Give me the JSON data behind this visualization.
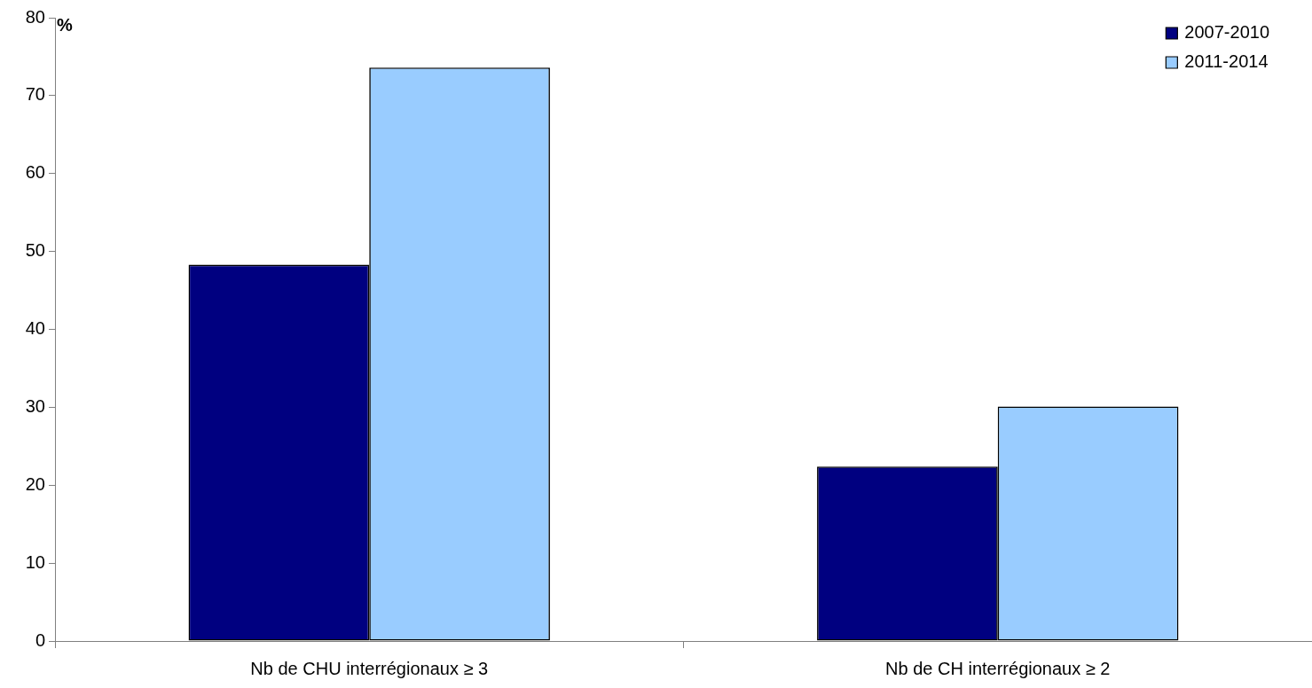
{
  "chart_data": {
    "type": "bar",
    "ylabel": "%",
    "categories": [
      "Nb de CHU interrégionaux ≥ 3",
      "Nb de CH interrégionaux ≥ 2"
    ],
    "series": [
      {
        "name": "2007-2010",
        "color": "#000080",
        "values": [
          48.3,
          22.4
        ]
      },
      {
        "name": "2011-2014",
        "color": "#99ccff",
        "values": [
          73.6,
          30.1
        ]
      }
    ],
    "ylim": [
      0,
      80
    ],
    "yticks": [
      0,
      10,
      20,
      30,
      40,
      50,
      60,
      70,
      80
    ],
    "grid": false,
    "legend": "top right"
  }
}
